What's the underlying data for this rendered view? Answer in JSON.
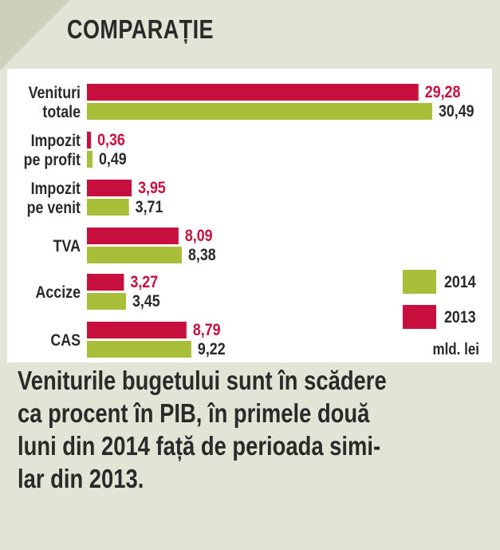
{
  "header": {
    "title": "COMPARAȚIE"
  },
  "chart_data": {
    "type": "bar",
    "orientation": "horizontal",
    "categories": [
      [
        "Venituri",
        "totale"
      ],
      [
        "Impozit",
        "pe profit"
      ],
      [
        "Impozit",
        "pe venit"
      ],
      [
        "TVA"
      ],
      [
        "Accize"
      ],
      [
        "CAS"
      ]
    ],
    "series": [
      {
        "name": "2013",
        "color": "#c8103e",
        "values": [
          29.28,
          0.36,
          3.95,
          8.09,
          3.27,
          8.79
        ],
        "labels": [
          "29,28",
          "0,36",
          "3,95",
          "8,09",
          "3,27",
          "8,79"
        ]
      },
      {
        "name": "2014",
        "color": "#a9bf3a",
        "values": [
          30.49,
          0.49,
          3.71,
          8.38,
          3.45,
          9.22
        ],
        "labels": [
          "30,49",
          "0,49",
          "3,71",
          "8,38",
          "3,45",
          "9,22"
        ]
      }
    ],
    "legend": {
      "placement": "bottom-right",
      "order": [
        "2014",
        "2013"
      ],
      "unit": "mld. lei"
    },
    "value_label_colors": {
      "2013": "#c8103e",
      "2014": "#2a2a2a"
    },
    "grid": false
  },
  "caption": {
    "lines": [
      "Veniturile bugetului sunt în scădere",
      "ca procent în PIB, în primele două",
      "luni din 2014 față de perioada simi-",
      "lar din 2013."
    ]
  }
}
